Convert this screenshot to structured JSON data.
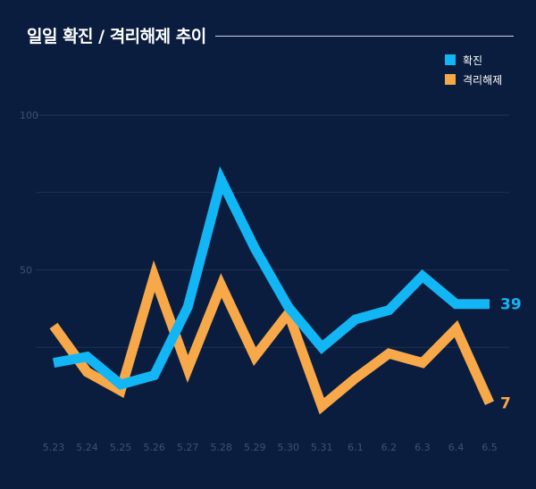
{
  "title": "일일 확진 / 격리해제 추이",
  "colors": {
    "background": "#0b1d3e",
    "grid": "#1e3254",
    "tick": "#3d5272",
    "confirmed": "#13b6f5",
    "released": "#f7a94a"
  },
  "chart_data": {
    "type": "line",
    "title": "일일 확진 / 격리해제 추이",
    "xlabel": "",
    "ylabel": "",
    "ylim": [
      0,
      100
    ],
    "yticks": [
      "50",
      "100"
    ],
    "grid": true,
    "legend_position": "top-right",
    "categories": [
      "5.23",
      "5.24",
      "5.25",
      "5.26",
      "5.27",
      "5.28",
      "5.29",
      "5.30",
      "5.31",
      "6.1",
      "6.2",
      "6.3",
      "6.4",
      "6.5"
    ],
    "series": [
      {
        "name": "확진",
        "color": "#13b6f5",
        "values": [
          20,
          22,
          13,
          16,
          38,
          79,
          57,
          38,
          25,
          34,
          37,
          48,
          39,
          39
        ],
        "end_label": "39"
      },
      {
        "name": "격리해제",
        "color": "#f7a94a",
        "values": [
          32,
          17,
          11,
          48,
          18,
          45,
          22,
          36,
          6,
          15,
          23,
          20,
          31,
          7
        ],
        "end_label": "7"
      }
    ]
  }
}
